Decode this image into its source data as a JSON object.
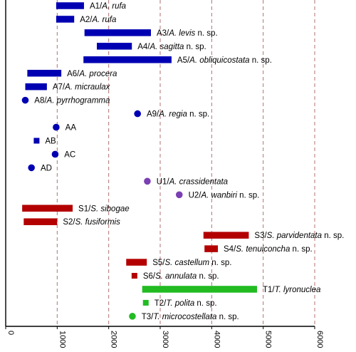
{
  "chart_data": {
    "type": "range",
    "title": "",
    "xlabel": "",
    "ylabel": "",
    "xlim": [
      0,
      6000
    ],
    "xticks": [
      "0",
      "1000",
      "2000",
      "3000",
      "4000",
      "5000",
      "6000"
    ],
    "colors": {
      "A": "#0000b3",
      "U": "#7b3fb2",
      "S": "#b30000",
      "T": "#22bb22",
      "grid": "#b07070"
    },
    "series": [
      {
        "id": "A1",
        "pre": "A1/",
        "name": "A. rufa",
        "suffix": "",
        "min": 980,
        "max": 1520,
        "color": "A",
        "marker": "bar"
      },
      {
        "id": "A2",
        "pre": "A2/",
        "name": "A. rufa",
        "suffix": "",
        "min": 980,
        "max": 1330,
        "color": "A",
        "marker": "bar"
      },
      {
        "id": "A3",
        "pre": "A3/",
        "name": "A. levis",
        "suffix": " n. sp.",
        "min": 1530,
        "max": 2820,
        "color": "A",
        "marker": "bar"
      },
      {
        "id": "A4",
        "pre": "A4/",
        "name": "A. sagitta",
        "suffix": " n. sp.",
        "min": 1770,
        "max": 2450,
        "color": "A",
        "marker": "bar"
      },
      {
        "id": "A5",
        "pre": "A5/",
        "name": "A. obliquicostata",
        "suffix": " n. sp.",
        "min": 1510,
        "max": 3220,
        "color": "A",
        "marker": "bar"
      },
      {
        "id": "A6",
        "pre": "A6/",
        "name": "A. procera",
        "suffix": "",
        "min": 420,
        "max": 1080,
        "color": "A",
        "marker": "bar"
      },
      {
        "id": "A7",
        "pre": "A7/",
        "name": "A. micraulax",
        "suffix": "",
        "min": 380,
        "max": 800,
        "color": "A",
        "marker": "bar"
      },
      {
        "id": "A8",
        "pre": "A8/",
        "name": "A. pyrrhogramma",
        "suffix": "",
        "min": 380,
        "max": 380,
        "color": "A",
        "marker": "dot"
      },
      {
        "id": "A9",
        "pre": "A9/",
        "name": "A. regia",
        "suffix": " n. sp.",
        "min": 2560,
        "max": 2560,
        "color": "A",
        "marker": "dot"
      },
      {
        "id": "AA",
        "pre": "AA",
        "name": "",
        "suffix": "",
        "min": 980,
        "max": 980,
        "color": "A",
        "marker": "dot"
      },
      {
        "id": "AB",
        "pre": "AB",
        "name": "",
        "suffix": "",
        "min": 600,
        "max": 600,
        "color": "A",
        "marker": "square"
      },
      {
        "id": "AC",
        "pre": "AC",
        "name": "",
        "suffix": "",
        "min": 960,
        "max": 960,
        "color": "A",
        "marker": "dot"
      },
      {
        "id": "AD",
        "pre": "AD",
        "name": "",
        "suffix": "",
        "min": 500,
        "max": 500,
        "color": "A",
        "marker": "dot"
      },
      {
        "id": "U1",
        "pre": "U1/",
        "name": "A. crassidentata",
        "suffix": "",
        "min": 2750,
        "max": 2750,
        "color": "U",
        "marker": "dot"
      },
      {
        "id": "U2",
        "pre": "U2/",
        "name": "A. wanbiri",
        "suffix": " n. sp.",
        "min": 3370,
        "max": 3370,
        "color": "U",
        "marker": "dot"
      },
      {
        "id": "S1",
        "pre": "S1/",
        "name": "S. sibogae",
        "suffix": "",
        "min": 320,
        "max": 1300,
        "color": "S",
        "marker": "bar"
      },
      {
        "id": "S2",
        "pre": "S2/",
        "name": "S. fusiformis",
        "suffix": "",
        "min": 350,
        "max": 1000,
        "color": "S",
        "marker": "bar"
      },
      {
        "id": "S3",
        "pre": "S3/",
        "name": "S. parvidentata",
        "suffix": " n. sp.",
        "min": 3840,
        "max": 4720,
        "color": "S",
        "marker": "bar"
      },
      {
        "id": "S4",
        "pre": "S4/",
        "name": "S. tenuiconcha",
        "suffix": " n. sp.",
        "min": 3860,
        "max": 4120,
        "color": "S",
        "marker": "bar"
      },
      {
        "id": "S5",
        "pre": "S5/",
        "name": "S. castellum",
        "suffix": " n. sp.",
        "min": 2340,
        "max": 2740,
        "color": "S",
        "marker": "bar"
      },
      {
        "id": "S6",
        "pre": "S6/",
        "name": "S. annulata",
        "suffix": " n. sp.",
        "min": 2500,
        "max": 2500,
        "color": "S",
        "marker": "square"
      },
      {
        "id": "T1",
        "pre": "T1/",
        "name": "T. lyronuclea",
        "suffix": "",
        "min": 2650,
        "max": 4880,
        "color": "T",
        "marker": "bar"
      },
      {
        "id": "T2",
        "pre": "T2/",
        "name": "T. polita",
        "suffix": " n. sp.",
        "min": 2720,
        "max": 2720,
        "color": "T",
        "marker": "square"
      },
      {
        "id": "T3",
        "pre": "T3/",
        "name": "T. microcostellata",
        "suffix": " n. sp.",
        "min": 2460,
        "max": 2460,
        "color": "T",
        "marker": "dot"
      }
    ]
  }
}
